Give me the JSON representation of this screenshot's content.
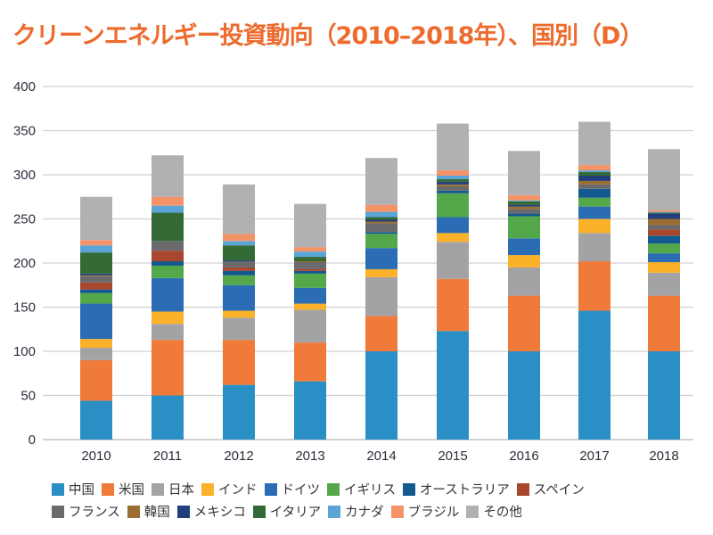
{
  "chart_data": {
    "type": "bar",
    "stacked": true,
    "title": "クリーンエネルギー投資動向（2010–2018年）、国別（D）",
    "xlabel": "",
    "ylabel": "",
    "ylim": [
      0,
      400
    ],
    "yticks": [
      0,
      50,
      100,
      150,
      200,
      250,
      300,
      350,
      400
    ],
    "grid": true,
    "legend_position": "bottom",
    "categories": [
      "2010",
      "2011",
      "2012",
      "2013",
      "2014",
      "2015",
      "2016",
      "2017",
      "2018"
    ],
    "series": [
      {
        "name": "中国",
        "color": "#2a8fc4",
        "values": [
          44,
          50,
          62,
          66,
          100,
          123,
          100,
          146,
          100
        ]
      },
      {
        "name": "米国",
        "color": "#f07a3a",
        "values": [
          46,
          63,
          51,
          44,
          40,
          59,
          63,
          56,
          63
        ]
      },
      {
        "name": "日本",
        "color": "#a3a3a5",
        "values": [
          14,
          18,
          25,
          37,
          44,
          42,
          32,
          32,
          26
        ]
      },
      {
        "name": "インド",
        "color": "#fbb12a",
        "values": [
          10,
          14,
          8,
          7,
          9,
          10,
          14,
          16,
          12
        ]
      },
      {
        "name": "ドイツ",
        "color": "#2a6db4",
        "values": [
          40,
          38,
          29,
          18,
          24,
          18,
          19,
          14,
          10
        ]
      },
      {
        "name": "イギリス",
        "color": "#55a84a",
        "values": [
          12,
          14,
          11,
          16,
          16,
          27,
          25,
          10,
          11
        ]
      },
      {
        "name": "オーストラリア",
        "color": "#11598f",
        "values": [
          4,
          5,
          5,
          3,
          2,
          3,
          3,
          10,
          9
        ]
      },
      {
        "name": "スペイン",
        "color": "#a8462e",
        "values": [
          8,
          12,
          4,
          2,
          0,
          0,
          0,
          0,
          7
        ]
      },
      {
        "name": "フランス",
        "color": "#6a6a6c",
        "values": [
          7,
          11,
          7,
          8,
          10,
          5,
          5,
          5,
          5
        ]
      },
      {
        "name": "韓国",
        "color": "#9a6d32",
        "values": [
          1,
          0,
          0,
          1,
          2,
          2,
          3,
          4,
          7
        ]
      },
      {
        "name": "メキシコ",
        "color": "#213f7a",
        "values": [
          2,
          0,
          1,
          0,
          2,
          3,
          2,
          6,
          6
        ]
      },
      {
        "name": "イタリア",
        "color": "#336a35",
        "values": [
          24,
          32,
          17,
          5,
          3,
          3,
          4,
          4,
          1
        ]
      },
      {
        "name": "カナダ",
        "color": "#5aa5d6",
        "values": [
          8,
          8,
          5,
          6,
          6,
          4,
          1,
          2,
          1
        ]
      },
      {
        "name": "ブラジル",
        "color": "#f59368",
        "values": [
          6,
          10,
          8,
          5,
          8,
          6,
          6,
          6,
          2
        ]
      },
      {
        "name": "その他",
        "color": "#b1b1b3",
        "values": [
          49,
          47,
          56,
          49,
          53,
          53,
          50,
          49,
          69
        ]
      }
    ]
  },
  "legend": {
    "rows": [
      [
        0,
        1,
        2,
        3,
        4,
        5,
        6,
        7
      ],
      [
        8,
        9,
        10,
        11,
        12,
        13,
        14
      ]
    ]
  }
}
